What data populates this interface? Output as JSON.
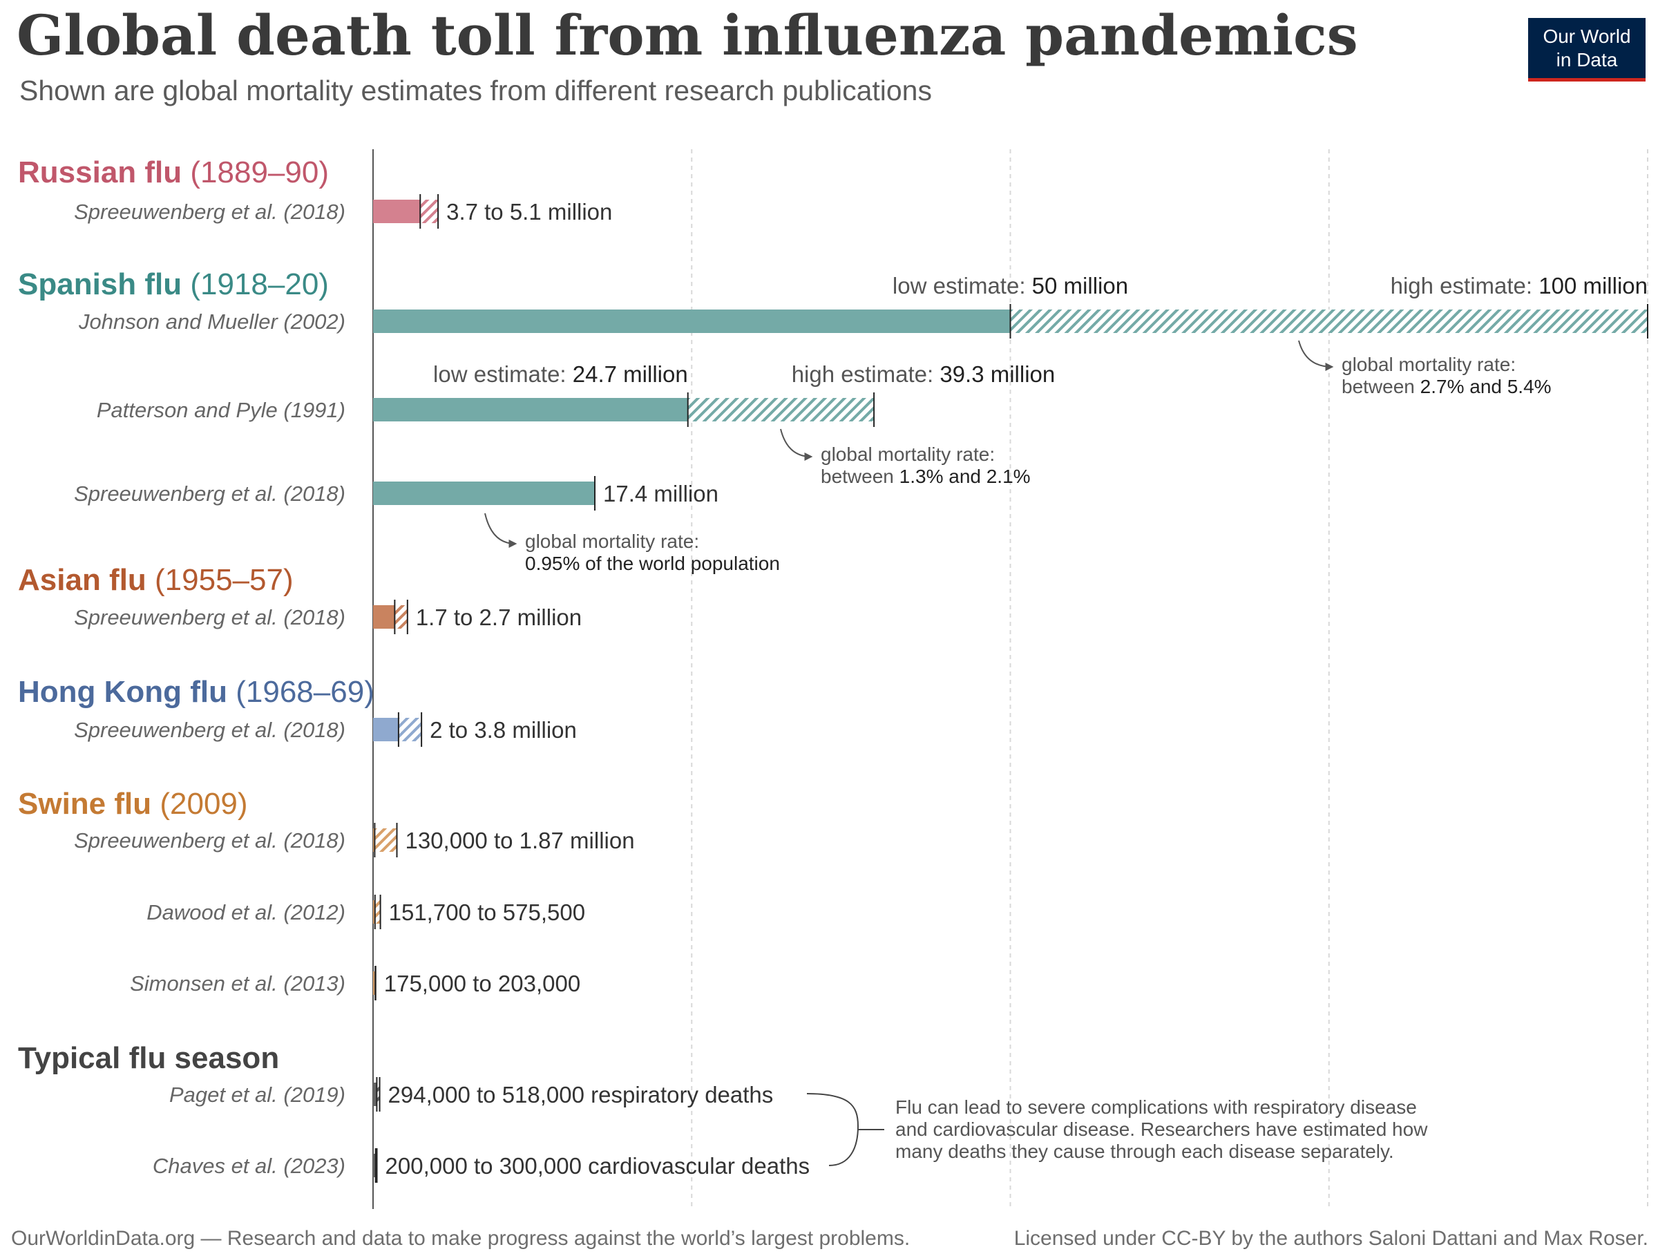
{
  "title": "Global death toll from influenza pandemics",
  "subtitle": "Shown are global mortality estimates from different research publications",
  "logo": {
    "line1": "Our World",
    "line2": "in Data"
  },
  "footer": {
    "left": "OurWorldinData.org — Research and data to make progress against the world’s largest problems.",
    "right": "Licensed under CC-BY by the authors Saloni Dattani and Max Roser."
  },
  "chart_data": {
    "type": "bar",
    "orientation": "horizontal",
    "xlim": [
      0,
      100000000
    ],
    "gridlines_at": [
      25000000,
      50000000,
      75000000,
      100000000
    ],
    "grid": "vertical dashed",
    "encoding": {
      "low_estimate": "solid bar",
      "range_to_high_estimate": "hatched bar"
    },
    "groups": [
      {
        "name": "Russian flu",
        "years": "(1889–90)",
        "color": "#c0576b",
        "light_color": "#d4818f",
        "rows": [
          {
            "source": "Spreeuwenberg et al. (2018)",
            "low": 3700000,
            "high": 5100000,
            "label": "3.7 to 5.1 million"
          }
        ]
      },
      {
        "name": "Spanish flu",
        "years": "(1918–20)",
        "color": "#3a8a86",
        "light_color": "#74aaa7",
        "rows": [
          {
            "source": "Johnson and Mueller (2002)",
            "low": 50000000,
            "high": 100000000,
            "low_label_prefix": "low estimate: ",
            "low_label_value": "50 million",
            "high_label_prefix": "high estimate: ",
            "high_label_value": "100 million",
            "note_line1": "global mortality rate:",
            "note_line2_prefix": "between ",
            "note_line2_value": "2.7% and 5.4%"
          },
          {
            "source": "Patterson and Pyle (1991)",
            "low": 24700000,
            "high": 39300000,
            "low_label_prefix": "low estimate: ",
            "low_label_value": "24.7 million",
            "high_label_prefix": "high estimate: ",
            "high_label_value": "39.3 million",
            "note_line1": "global mortality rate:",
            "note_line2_prefix": "between ",
            "note_line2_value": "1.3% and 2.1%"
          },
          {
            "source": "Spreeuwenberg et al. (2018)",
            "low": 17400000,
            "high": 17400000,
            "label": "17.4 million",
            "note_line1": "global mortality rate:",
            "note_line2_prefix": "",
            "note_line2_value": "0.95% of the world population"
          }
        ]
      },
      {
        "name": "Asian flu",
        "years": "(1955–57)",
        "color": "#b3592f",
        "light_color": "#c9835f",
        "rows": [
          {
            "source": "Spreeuwenberg et al. (2018)",
            "low": 1700000,
            "high": 2700000,
            "label": "1.7 to 2.7 million"
          }
        ]
      },
      {
        "name": "Hong Kong flu",
        "years": "(1968–69)",
        "color": "#4c6a9c",
        "light_color": "#8fa9cf",
        "rows": [
          {
            "source": "Spreeuwenberg et al. (2018)",
            "low": 2000000,
            "high": 3800000,
            "label": "2 to 3.8 million"
          }
        ]
      },
      {
        "name": "Swine flu",
        "years": "(2009)",
        "color": "#c47a33",
        "light_color": "#d8a06a",
        "rows": [
          {
            "source": "Spreeuwenberg et al. (2018)",
            "low": 130000,
            "high": 1870000,
            "label": "130,000 to 1.87 million"
          },
          {
            "source": "Dawood et al. (2012)",
            "low": 151700,
            "high": 575500,
            "label": "151,700 to 575,500"
          },
          {
            "source": "Simonsen et al. (2013)",
            "low": 175000,
            "high": 203000,
            "label": "175,000 to 203,000"
          }
        ]
      },
      {
        "name": "Typical flu season",
        "years": "",
        "color": "#444444",
        "light_color": "#666666",
        "rows": [
          {
            "source": "Paget et al. (2019)",
            "low": 294000,
            "high": 518000,
            "label": "294,000 to 518,000 respiratory deaths"
          },
          {
            "source": "Chaves et al. (2023)",
            "low": 200000,
            "high": 300000,
            "label": "200,000 to 300,000 cardiovascular deaths"
          }
        ]
      }
    ],
    "bracket_note": [
      "Flu can lead to severe complications with respiratory disease",
      "and cardiovascular disease. Researchers have estimated how",
      "many deaths they cause through each disease separately."
    ]
  }
}
